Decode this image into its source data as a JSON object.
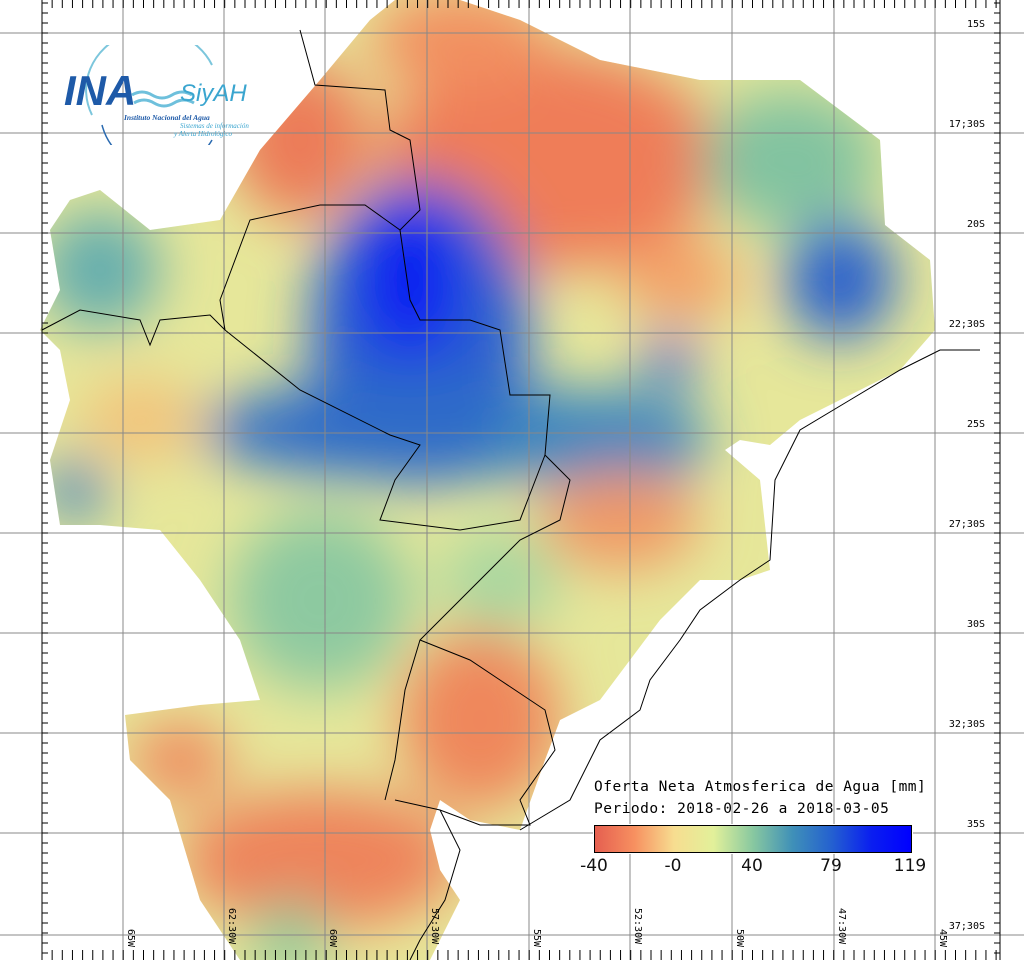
{
  "logo": {
    "acronym": "INA",
    "brand": "SiyAH",
    "institution": "Instituto Nacional del Agua",
    "system_line1": "Sistemas de información",
    "system_line2": "y Alerta Hidrológico"
  },
  "legend": {
    "title": "Oferta Neta Atmosferica de Agua [mm]",
    "period": "Periodo: 2018-02-26 a 2018-03-05",
    "ticks": [
      "-40",
      "-0",
      "40",
      "79",
      "119"
    ],
    "colors": [
      "#e55f50",
      "#f79060",
      "#f7dd90",
      "#e2f09a",
      "#88c8a0",
      "#3f90b8",
      "#2460d0",
      "#0a1ef0",
      "#0000ff"
    ]
  },
  "axes": {
    "lat_labels": [
      "15S",
      "17;30S",
      "20S",
      "22;30S",
      "25S",
      "27;30S",
      "30S",
      "32;30S",
      "35S",
      "37;30S"
    ],
    "lon_labels": [
      "65W",
      "62:30W",
      "60W",
      "57:30W",
      "55W",
      "52:30W",
      "50W",
      "47:30W",
      "45W"
    ]
  }
}
